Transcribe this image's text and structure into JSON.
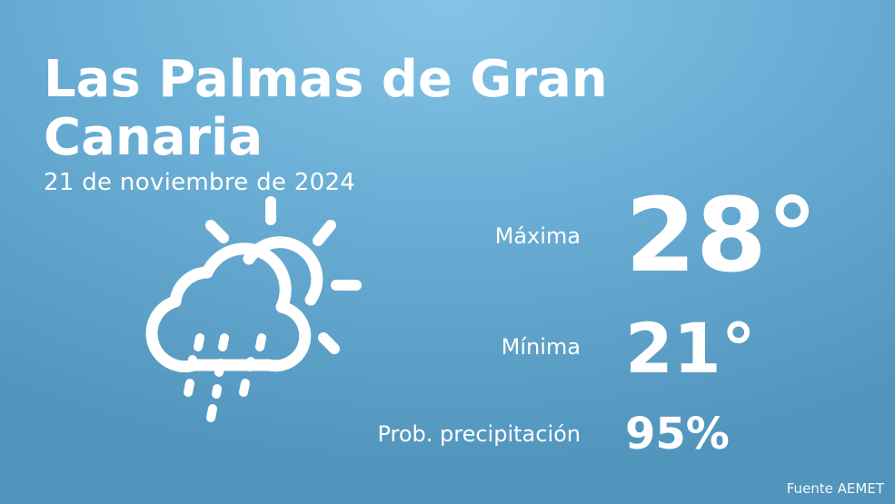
{
  "location": {
    "line1": " Las Palmas de Gran",
    "line2": "Canaria"
  },
  "date": "21 de noviembre de 2024",
  "weather_icon": "partly-cloudy-rain-icon",
  "stats": {
    "max_label": "Máxima",
    "max_value": "28°",
    "min_label": "Mínima",
    "min_value": "21°",
    "prob_label": "Prob. precipitación",
    "prob_value": "95%"
  },
  "source": "Fuente AEMET"
}
